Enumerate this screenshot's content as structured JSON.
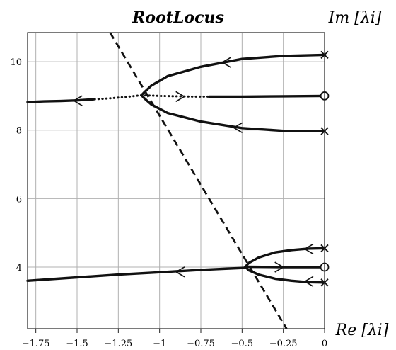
{
  "chart_data": {
    "type": "line",
    "title": "RootLocus",
    "xlabel": "Re [λi]",
    "ylabel": "Im [λi]",
    "xlim": [
      -1.8,
      0
    ],
    "ylim": [
      2.2,
      10.85
    ],
    "grid": true,
    "x_ticks": [
      -1.75,
      -1.5,
      -1.25,
      -1,
      -0.75,
      -0.5,
      -0.25,
      0
    ],
    "x_tick_labels": [
      "−1.75",
      "−1.5",
      "−1.25",
      "−1",
      "−0.75",
      "−0.5",
      "−0.25",
      "0"
    ],
    "y_ticks": [
      4,
      6,
      8,
      10
    ],
    "y_tick_labels": [
      "4",
      "6",
      "8",
      "10"
    ],
    "series": [
      {
        "style": "solid",
        "x": [
          0,
          -0.25,
          -0.5,
          -0.75,
          -0.95,
          -1.05,
          -1.09,
          -1.11
        ],
        "y": [
          10.2,
          10.17,
          10.08,
          9.85,
          9.58,
          9.3,
          9.12,
          9.02
        ]
      },
      {
        "style": "solid",
        "x": [
          0,
          -0.25,
          -0.5,
          -0.75,
          -0.95,
          -1.05,
          -1.09,
          -1.11
        ],
        "y": [
          7.97,
          7.98,
          8.06,
          8.25,
          8.5,
          8.75,
          8.92,
          9.02
        ]
      },
      {
        "style": "dotted",
        "x": [
          -1.11,
          -1.0,
          -0.9,
          -0.8,
          -0.7
        ],
        "y": [
          9.02,
          9.0,
          8.99,
          8.98,
          8.98
        ]
      },
      {
        "style": "solid",
        "x": [
          -0.7,
          -0.5,
          -0.25,
          0
        ],
        "y": [
          8.98,
          8.98,
          8.99,
          9.0
        ]
      },
      {
        "style": "dotted",
        "x": [
          -1.11,
          -1.2,
          -1.3,
          -1.4
        ],
        "y": [
          9.02,
          8.97,
          8.93,
          8.9
        ]
      },
      {
        "style": "solid",
        "x": [
          -1.4,
          -1.5,
          -1.6,
          -1.7,
          -1.8
        ],
        "y": [
          8.9,
          8.87,
          8.85,
          8.84,
          8.82
        ]
      },
      {
        "style": "solid",
        "x": [
          0,
          -0.1,
          -0.2,
          -0.3,
          -0.4,
          -0.46,
          -0.48
        ],
        "y": [
          4.55,
          4.54,
          4.5,
          4.43,
          4.28,
          4.12,
          4.01
        ]
      },
      {
        "style": "solid",
        "x": [
          0,
          -0.1,
          -0.2,
          -0.3,
          -0.4,
          -0.46,
          -0.48
        ],
        "y": [
          3.55,
          3.56,
          3.6,
          3.66,
          3.78,
          3.91,
          4.01
        ]
      },
      {
        "style": "solid",
        "x": [
          -0.48,
          -0.25,
          0
        ],
        "y": [
          4.01,
          4.0,
          4.0
        ]
      },
      {
        "style": "solid",
        "x": [
          -0.48,
          -0.75,
          -1.0,
          -1.25,
          -1.5,
          -1.8
        ],
        "y": [
          3.98,
          3.92,
          3.85,
          3.78,
          3.7,
          3.6
        ]
      },
      {
        "style": "dashed",
        "x": [
          -1.3,
          -0.23
        ],
        "y": [
          10.85,
          2.2
        ]
      }
    ],
    "arrows": [
      {
        "x": -0.62,
        "y": 9.98,
        "dir": "left"
      },
      {
        "x": -0.55,
        "y": 8.07,
        "dir": "left"
      },
      {
        "x": -0.85,
        "y": 8.98,
        "dir": "right"
      },
      {
        "x": -1.52,
        "y": 8.86,
        "dir": "left"
      },
      {
        "x": -0.12,
        "y": 4.53,
        "dir": "left"
      },
      {
        "x": -0.12,
        "y": 3.58,
        "dir": "left"
      },
      {
        "x": -0.25,
        "y": 4.0,
        "dir": "right"
      },
      {
        "x": -0.9,
        "y": 3.86,
        "dir": "left"
      }
    ],
    "poles": [
      {
        "x": 0,
        "y": 10.2
      },
      {
        "x": 0,
        "y": 7.97
      },
      {
        "x": 0,
        "y": 4.55
      },
      {
        "x": 0,
        "y": 3.55
      }
    ],
    "zeros": [
      {
        "x": 0,
        "y": 9.0
      },
      {
        "x": 0,
        "y": 4.0
      }
    ]
  }
}
